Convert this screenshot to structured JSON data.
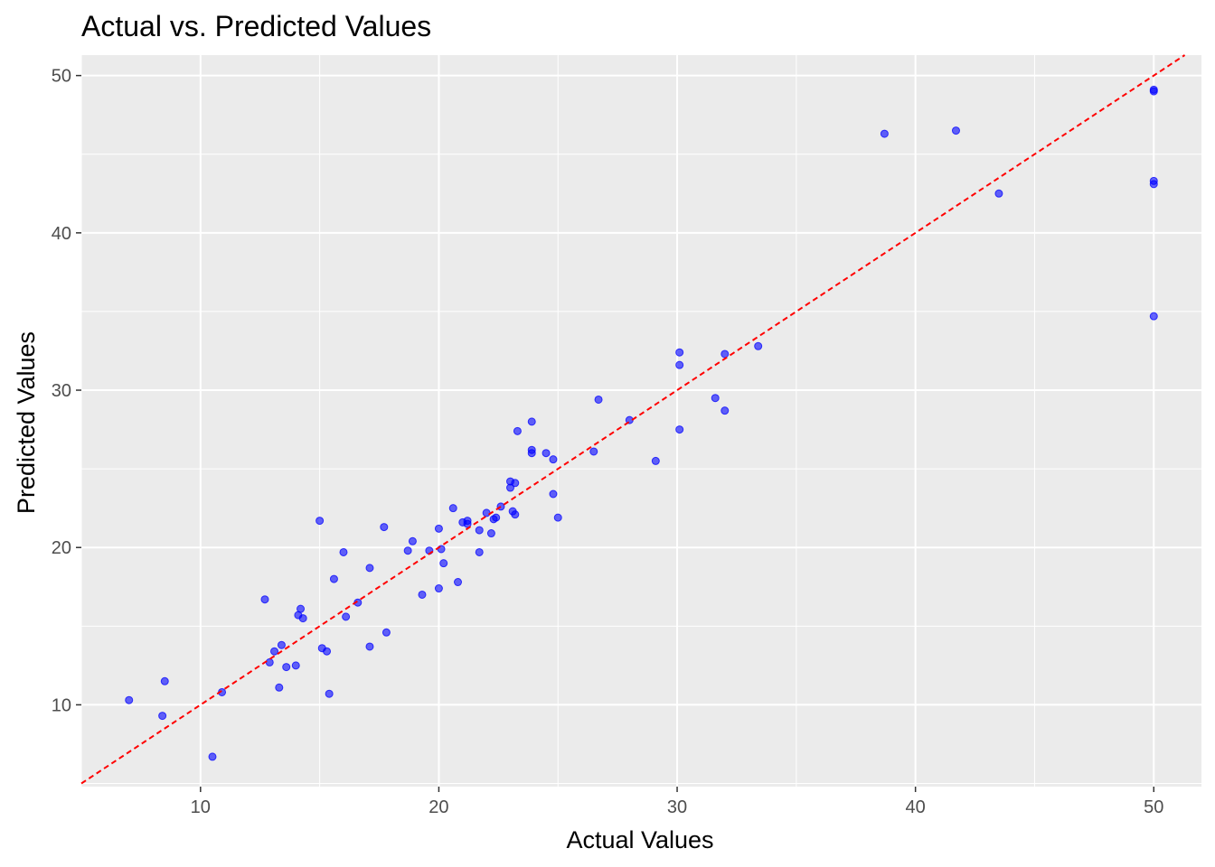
{
  "chart_data": {
    "type": "scatter",
    "title": "Actual vs. Predicted Values",
    "xlabel": "Actual Values",
    "ylabel": "Predicted Values",
    "xlim": [
      5,
      52
    ],
    "ylim": [
      4.8,
      51.3
    ],
    "x_ticks": [
      10,
      20,
      30,
      40,
      50
    ],
    "y_ticks": [
      10,
      20,
      30,
      40,
      50
    ],
    "grid": true,
    "legend": "none",
    "background": "#ebebeb",
    "gridline_color": "#ffffff",
    "point_color": "#0000ff",
    "point_opacity": 0.6,
    "reference_line": {
      "slope": 1,
      "intercept": 0,
      "color": "#ff0000",
      "style": "dashed"
    },
    "points": [
      {
        "x": 7.0,
        "y": 10.3
      },
      {
        "x": 8.4,
        "y": 9.3
      },
      {
        "x": 8.5,
        "y": 11.5
      },
      {
        "x": 10.5,
        "y": 6.7
      },
      {
        "x": 10.9,
        "y": 10.8
      },
      {
        "x": 12.7,
        "y": 16.7
      },
      {
        "x": 12.9,
        "y": 12.7
      },
      {
        "x": 13.1,
        "y": 13.4
      },
      {
        "x": 13.3,
        "y": 11.1
      },
      {
        "x": 13.4,
        "y": 13.8
      },
      {
        "x": 13.6,
        "y": 12.4
      },
      {
        "x": 14.0,
        "y": 12.5
      },
      {
        "x": 14.1,
        "y": 15.7
      },
      {
        "x": 14.2,
        "y": 16.1
      },
      {
        "x": 14.3,
        "y": 15.5
      },
      {
        "x": 15.0,
        "y": 21.7
      },
      {
        "x": 15.1,
        "y": 13.6
      },
      {
        "x": 15.3,
        "y": 13.4
      },
      {
        "x": 15.4,
        "y": 10.7
      },
      {
        "x": 15.6,
        "y": 18.0
      },
      {
        "x": 16.0,
        "y": 19.7
      },
      {
        "x": 16.1,
        "y": 15.6
      },
      {
        "x": 16.6,
        "y": 16.5
      },
      {
        "x": 17.1,
        "y": 18.7
      },
      {
        "x": 17.1,
        "y": 13.7
      },
      {
        "x": 17.7,
        "y": 21.3
      },
      {
        "x": 17.8,
        "y": 14.6
      },
      {
        "x": 18.7,
        "y": 19.8
      },
      {
        "x": 18.9,
        "y": 20.4
      },
      {
        "x": 19.3,
        "y": 17.0
      },
      {
        "x": 19.6,
        "y": 19.8
      },
      {
        "x": 20.0,
        "y": 21.2
      },
      {
        "x": 20.0,
        "y": 17.4
      },
      {
        "x": 20.1,
        "y": 19.9
      },
      {
        "x": 20.2,
        "y": 19.0
      },
      {
        "x": 20.6,
        "y": 22.5
      },
      {
        "x": 20.8,
        "y": 17.8
      },
      {
        "x": 21.0,
        "y": 21.6
      },
      {
        "x": 21.2,
        "y": 21.7
      },
      {
        "x": 21.2,
        "y": 21.5
      },
      {
        "x": 21.7,
        "y": 21.1
      },
      {
        "x": 21.7,
        "y": 19.7
      },
      {
        "x": 22.0,
        "y": 22.2
      },
      {
        "x": 22.2,
        "y": 20.9
      },
      {
        "x": 22.3,
        "y": 21.8
      },
      {
        "x": 22.4,
        "y": 21.9
      },
      {
        "x": 22.6,
        "y": 22.6
      },
      {
        "x": 23.0,
        "y": 24.2
      },
      {
        "x": 23.0,
        "y": 23.8
      },
      {
        "x": 23.1,
        "y": 22.3
      },
      {
        "x": 23.2,
        "y": 24.1
      },
      {
        "x": 23.2,
        "y": 22.1
      },
      {
        "x": 23.3,
        "y": 27.4
      },
      {
        "x": 23.9,
        "y": 28.0
      },
      {
        "x": 23.9,
        "y": 26.2
      },
      {
        "x": 23.9,
        "y": 26.0
      },
      {
        "x": 24.5,
        "y": 26.0
      },
      {
        "x": 24.8,
        "y": 25.6
      },
      {
        "x": 24.8,
        "y": 23.4
      },
      {
        "x": 25.0,
        "y": 21.9
      },
      {
        "x": 26.5,
        "y": 26.1
      },
      {
        "x": 26.7,
        "y": 29.4
      },
      {
        "x": 28.0,
        "y": 28.1
      },
      {
        "x": 29.1,
        "y": 25.5
      },
      {
        "x": 30.1,
        "y": 32.4
      },
      {
        "x": 30.1,
        "y": 31.6
      },
      {
        "x": 30.1,
        "y": 27.5
      },
      {
        "x": 31.6,
        "y": 29.5
      },
      {
        "x": 32.0,
        "y": 32.3
      },
      {
        "x": 32.0,
        "y": 28.7
      },
      {
        "x": 33.4,
        "y": 32.8
      },
      {
        "x": 38.7,
        "y": 46.3
      },
      {
        "x": 41.7,
        "y": 46.5
      },
      {
        "x": 43.5,
        "y": 42.5
      },
      {
        "x": 50.0,
        "y": 49.1
      },
      {
        "x": 50.0,
        "y": 49.0
      },
      {
        "x": 50.0,
        "y": 43.3
      },
      {
        "x": 50.0,
        "y": 43.1
      },
      {
        "x": 50.0,
        "y": 34.7
      }
    ]
  }
}
